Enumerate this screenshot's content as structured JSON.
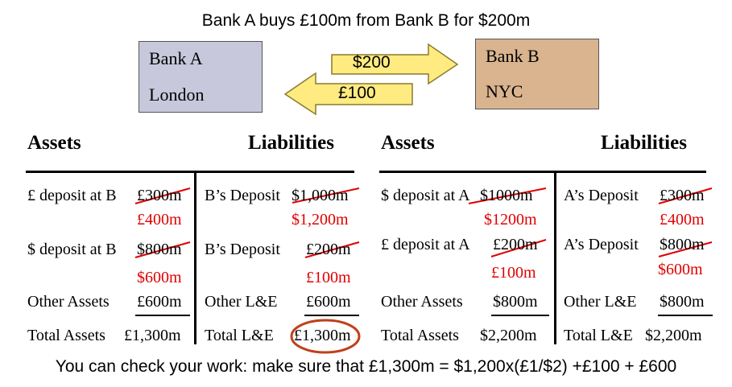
{
  "title": "Bank A buys £100m from Bank B for $200m",
  "footer": "You can check your work: make sure that £1,300m = $1,200x(£1/$2) +£100 + £600",
  "bank_a": {
    "name": "Bank A",
    "city": "London",
    "color": "#c8c8dc"
  },
  "bank_b": {
    "name": "Bank B",
    "city": "NYC",
    "color": "#d9b48f"
  },
  "arrows": {
    "right_label": "$200",
    "left_label": "£100",
    "color": "#ffeb80"
  },
  "colors": {
    "strike": "#e00000",
    "circle": "#c0401a"
  },
  "bank_a_sheet": {
    "assets_header": "Assets",
    "liabilities_header": "Liabilities",
    "assets": [
      {
        "label": "£ deposit at B",
        "old": "£300m",
        "new": "£400m"
      },
      {
        "label": "$ deposit at B",
        "old": "$800m",
        "new": "$600m"
      },
      {
        "label": "Other Assets",
        "value": "£600m"
      },
      {
        "label": "Total Assets",
        "value": "£1,300m"
      }
    ],
    "liabilities": [
      {
        "label": "B’s Deposit",
        "old": "$1,000m",
        "new": "$1,200m"
      },
      {
        "label": "B’s Deposit",
        "old": "£200m",
        "new": "£100m"
      },
      {
        "label": "Other L&E",
        "value": "£600m"
      },
      {
        "label": "Total L&E",
        "value": "£1,300m"
      }
    ]
  },
  "bank_b_sheet": {
    "assets_header": "Assets",
    "liabilities_header": "Liabilities",
    "assets": [
      {
        "label": "$ deposit at A",
        "old": "$1000m",
        "new": "$1200m"
      },
      {
        "label": "£ deposit at A",
        "old": "£200m",
        "new": "£100m"
      },
      {
        "label": "Other Assets",
        "value": "$800m"
      },
      {
        "label": "Total Assets",
        "value": "$2,200m"
      }
    ],
    "liabilities": [
      {
        "label": "A’s Deposit",
        "old": "£300m",
        "new": "£400m"
      },
      {
        "label": "A’s Deposit",
        "old": "$800m",
        "new": "$600m"
      },
      {
        "label": "Other L&E",
        "value": "$800m"
      },
      {
        "label": "Total L&E",
        "value": "$2,200m"
      }
    ]
  }
}
